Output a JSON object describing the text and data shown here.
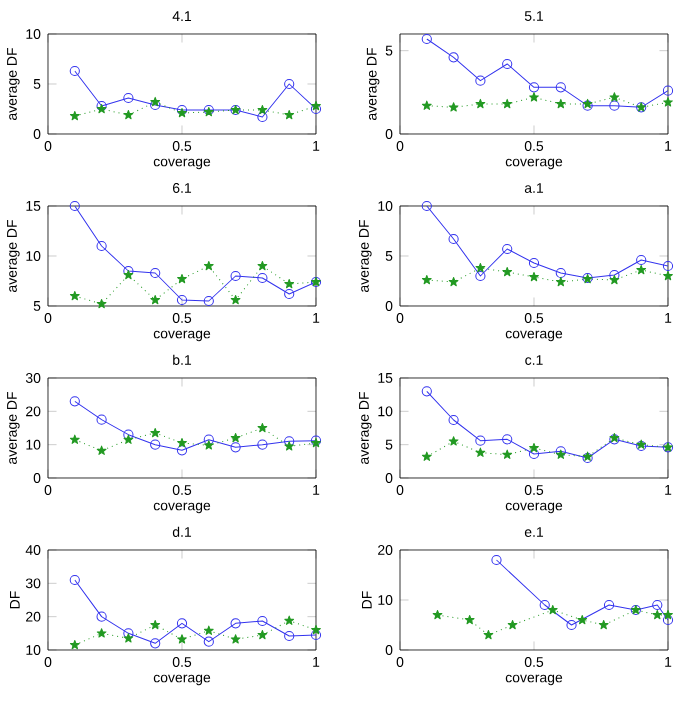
{
  "chart_data": [
    {
      "type": "line",
      "title": "4.1",
      "xlabel": "coverage",
      "ylabel": "average DF",
      "xlim": [
        0,
        1
      ],
      "xticks": [
        0,
        0.5,
        1
      ],
      "ylim": [
        0,
        10
      ],
      "yticks": [
        0,
        5,
        10
      ],
      "x": [
        0.1,
        0.2,
        0.3,
        0.4,
        0.5,
        0.6,
        0.7,
        0.8,
        0.9,
        1.0
      ],
      "series": [
        {
          "color": "#3333ee",
          "marker": "circle",
          "line_style": "solid",
          "values": [
            6.3,
            2.8,
            3.6,
            2.9,
            2.4,
            2.4,
            2.4,
            1.7,
            5.0,
            2.5
          ]
        },
        {
          "color": "#229922",
          "marker": "star",
          "line_style": "dotted",
          "values": [
            1.8,
            2.5,
            1.9,
            3.2,
            2.1,
            2.2,
            2.4,
            2.4,
            1.9,
            2.8
          ]
        }
      ]
    },
    {
      "type": "line",
      "title": "5.1",
      "xlabel": "coverage",
      "ylabel": "average DF",
      "xlim": [
        0,
        1
      ],
      "xticks": [
        0,
        0.5,
        1
      ],
      "ylim": [
        0,
        6
      ],
      "yticks": [
        0,
        5
      ],
      "x": [
        0.1,
        0.2,
        0.3,
        0.4,
        0.5,
        0.6,
        0.7,
        0.8,
        0.9,
        1.0
      ],
      "series": [
        {
          "color": "#3333ee",
          "marker": "circle",
          "line_style": "solid",
          "values": [
            5.7,
            4.6,
            3.2,
            4.2,
            2.8,
            2.8,
            1.7,
            1.7,
            1.6,
            2.6
          ]
        },
        {
          "color": "#229922",
          "marker": "star",
          "line_style": "dotted",
          "values": [
            1.7,
            1.6,
            1.8,
            1.8,
            2.2,
            1.8,
            1.8,
            2.2,
            1.6,
            1.9
          ]
        }
      ]
    },
    {
      "type": "line",
      "title": "6.1",
      "xlabel": "coverage",
      "ylabel": "average DF",
      "xlim": [
        0,
        1
      ],
      "xticks": [
        0,
        0.5,
        1
      ],
      "ylim": [
        5,
        15
      ],
      "yticks": [
        5,
        10,
        15
      ],
      "x": [
        0.1,
        0.2,
        0.3,
        0.4,
        0.5,
        0.6,
        0.7,
        0.8,
        0.9,
        1.0
      ],
      "series": [
        {
          "color": "#3333ee",
          "marker": "circle",
          "line_style": "solid",
          "values": [
            15,
            11,
            8.5,
            8.3,
            5.6,
            5.5,
            8.0,
            7.8,
            6.2,
            7.4
          ]
        },
        {
          "color": "#229922",
          "marker": "star",
          "line_style": "dotted",
          "values": [
            6.0,
            5.2,
            8.1,
            5.6,
            7.7,
            9.0,
            5.6,
            9.0,
            7.2,
            7.4
          ]
        }
      ]
    },
    {
      "type": "line",
      "title": "a.1",
      "xlabel": "coverage",
      "ylabel": "average DF",
      "xlim": [
        0,
        1
      ],
      "xticks": [
        0,
        0.5,
        1
      ],
      "ylim": [
        0,
        10
      ],
      "yticks": [
        0,
        5,
        10
      ],
      "x": [
        0.1,
        0.2,
        0.3,
        0.4,
        0.5,
        0.6,
        0.7,
        0.8,
        0.9,
        1.0
      ],
      "series": [
        {
          "color": "#3333ee",
          "marker": "circle",
          "line_style": "solid",
          "values": [
            10,
            6.7,
            3.0,
            5.7,
            4.3,
            3.3,
            2.8,
            3.1,
            4.6,
            4.0
          ]
        },
        {
          "color": "#229922",
          "marker": "star",
          "line_style": "dotted",
          "values": [
            2.6,
            2.4,
            3.8,
            3.4,
            2.9,
            2.4,
            2.7,
            2.6,
            3.6,
            3.0
          ]
        }
      ]
    },
    {
      "type": "line",
      "title": "b.1",
      "xlabel": "coverage",
      "ylabel": "average DF",
      "xlim": [
        0,
        1
      ],
      "xticks": [
        0,
        0.5,
        1
      ],
      "ylim": [
        0,
        30
      ],
      "yticks": [
        0,
        10,
        20,
        30
      ],
      "x": [
        0.1,
        0.2,
        0.3,
        0.4,
        0.5,
        0.6,
        0.7,
        0.8,
        0.9,
        1.0
      ],
      "series": [
        {
          "color": "#3333ee",
          "marker": "circle",
          "line_style": "solid",
          "values": [
            23,
            17.5,
            13,
            10,
            8.3,
            11.5,
            9.2,
            10,
            11,
            11.2
          ]
        },
        {
          "color": "#229922",
          "marker": "star",
          "line_style": "dotted",
          "values": [
            11.5,
            8.2,
            11.5,
            13.5,
            10.5,
            9.8,
            12,
            15,
            9.5,
            10.5
          ]
        }
      ]
    },
    {
      "type": "line",
      "title": "c.1",
      "xlabel": "coverage",
      "ylabel": "average DF",
      "xlim": [
        0,
        1
      ],
      "xticks": [
        0,
        0.5,
        1
      ],
      "ylim": [
        0,
        15
      ],
      "yticks": [
        0,
        5,
        10,
        15
      ],
      "x": [
        0.1,
        0.2,
        0.3,
        0.4,
        0.5,
        0.6,
        0.7,
        0.8,
        0.9,
        1.0
      ],
      "series": [
        {
          "color": "#3333ee",
          "marker": "circle",
          "line_style": "solid",
          "values": [
            13,
            8.7,
            5.6,
            5.8,
            3.6,
            4.0,
            3.0,
            5.8,
            4.8,
            4.6
          ]
        },
        {
          "color": "#229922",
          "marker": "star",
          "line_style": "dotted",
          "values": [
            3.2,
            5.5,
            3.8,
            3.5,
            4.5,
            3.5,
            3.2,
            6.0,
            5.0,
            4.6
          ]
        }
      ]
    },
    {
      "type": "line",
      "title": "d.1",
      "xlabel": "coverage",
      "ylabel": "DF",
      "xlim": [
        0,
        1
      ],
      "xticks": [
        0,
        0.5,
        1
      ],
      "ylim": [
        10,
        40
      ],
      "yticks": [
        10,
        20,
        30,
        40
      ],
      "x": [
        0.1,
        0.2,
        0.3,
        0.4,
        0.5,
        0.6,
        0.7,
        0.8,
        0.9,
        1.0
      ],
      "series": [
        {
          "color": "#3333ee",
          "marker": "circle",
          "line_style": "solid",
          "values": [
            31,
            20,
            15,
            12,
            18,
            12.5,
            18,
            18.7,
            14.2,
            14.5
          ]
        },
        {
          "color": "#229922",
          "marker": "star",
          "line_style": "dotted",
          "values": [
            11.5,
            15,
            13.5,
            17.5,
            13.2,
            15.8,
            13.2,
            14.5,
            18.8,
            16
          ]
        }
      ]
    },
    {
      "type": "line",
      "title": "e.1",
      "xlabel": "coverage",
      "ylabel": "DF",
      "xlim": [
        0,
        1
      ],
      "xticks": [
        0,
        0.5,
        1
      ],
      "ylim": [
        0,
        20
      ],
      "yticks": [
        0,
        10,
        20
      ],
      "series": [
        {
          "color": "#3333ee",
          "marker": "circle",
          "line_style": "solid",
          "x": [
            0.36,
            0.54,
            0.64,
            0.78,
            0.88,
            0.96,
            1.0
          ],
          "values": [
            18,
            9,
            5,
            9,
            8,
            9,
            6
          ]
        },
        {
          "color": "#229922",
          "marker": "star",
          "line_style": "dotted",
          "x": [
            0.14,
            0.26,
            0.33,
            0.42,
            0.57,
            0.68,
            0.76,
            0.88,
            0.96,
            1.0
          ],
          "values": [
            7,
            6,
            3,
            5,
            8,
            6,
            5,
            8,
            7,
            7
          ]
        }
      ]
    }
  ]
}
